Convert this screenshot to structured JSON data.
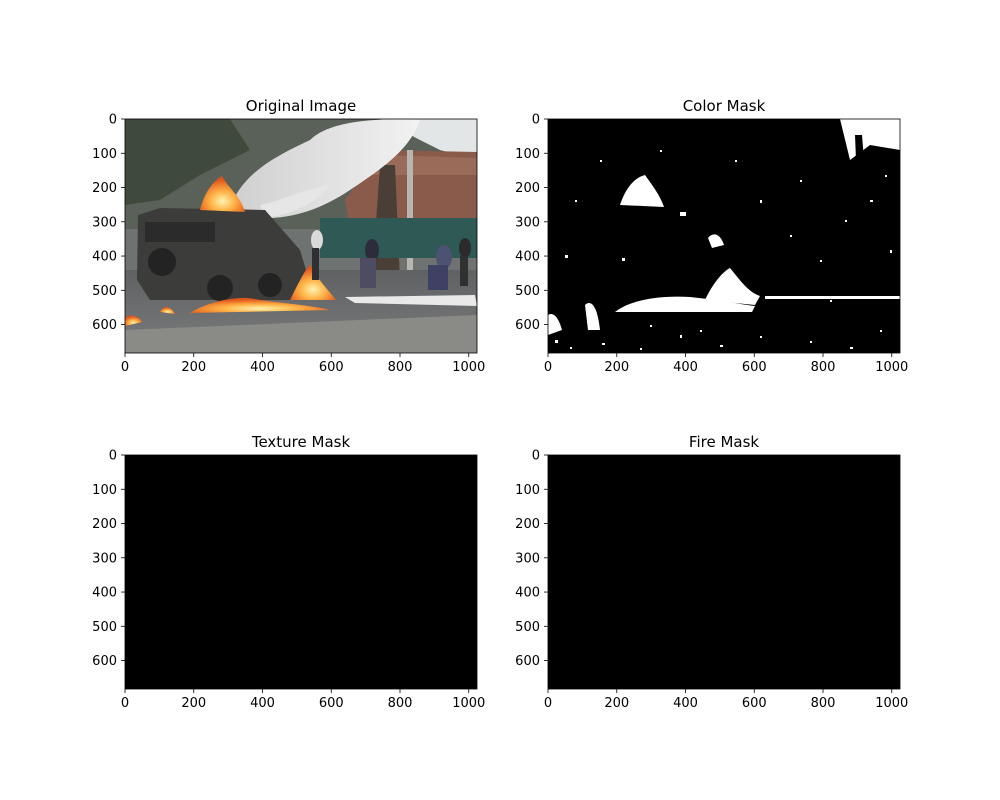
{
  "chart_data": [
    {
      "type": "image",
      "title": "Original Image",
      "x_ticks": [
        0,
        200,
        400,
        600,
        800,
        1000
      ],
      "y_ticks": [
        0,
        100,
        200,
        300,
        400,
        500,
        600
      ],
      "xlim": [
        0,
        1024
      ],
      "ylim": [
        683,
        0
      ],
      "content": "photo"
    },
    {
      "type": "image",
      "title": "Color Mask",
      "x_ticks": [
        0,
        200,
        400,
        600,
        800,
        1000
      ],
      "y_ticks": [
        0,
        100,
        200,
        300,
        400,
        500,
        600
      ],
      "xlim": [
        0,
        1024
      ],
      "ylim": [
        683,
        0
      ],
      "content": "binary-mask"
    },
    {
      "type": "image",
      "title": "Texture Mask",
      "x_ticks": [
        0,
        200,
        400,
        600,
        800,
        1000
      ],
      "y_ticks": [
        0,
        100,
        200,
        300,
        400,
        500,
        600
      ],
      "xlim": [
        0,
        1024
      ],
      "ylim": [
        683,
        0
      ],
      "content": "blank"
    },
    {
      "type": "image",
      "title": "Fire Mask",
      "x_ticks": [
        0,
        200,
        400,
        600,
        800,
        1000
      ],
      "y_ticks": [
        0,
        100,
        200,
        300,
        400,
        500,
        600
      ],
      "xlim": [
        0,
        1024
      ],
      "ylim": [
        683,
        0
      ],
      "content": "blank"
    }
  ]
}
